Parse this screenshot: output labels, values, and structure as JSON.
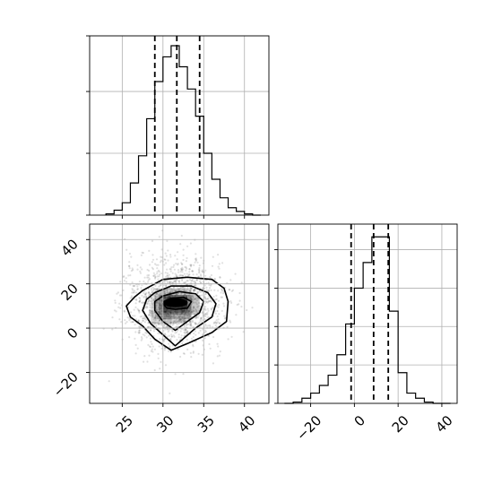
{
  "chart_data": [
    {
      "type": "histogram",
      "panel": "marginal-x",
      "x_range": [
        21,
        43
      ],
      "bin_edges": [
        23,
        24,
        25,
        26,
        27,
        28,
        29,
        30,
        31,
        32,
        33,
        34,
        35,
        36,
        37,
        38,
        39,
        40,
        41,
        42
      ],
      "counts": [
        1,
        4,
        10,
        26,
        48,
        78,
        108,
        128,
        137,
        120,
        102,
        80,
        50,
        29,
        14,
        6,
        3,
        1,
        0
      ],
      "y_max": 145,
      "y_ticks": [
        0,
        50,
        100,
        145
      ],
      "quantile_lines": [
        29.0,
        31.7,
        34.5
      ],
      "x_ticks": [
        25,
        30,
        35,
        40
      ],
      "grid": true
    },
    {
      "type": "histogram",
      "panel": "marginal-y",
      "x_range": [
        -35,
        47
      ],
      "bin_edges": [
        -32,
        -28,
        -24,
        -20,
        -16,
        -12,
        -8,
        -4,
        0,
        4,
        8,
        12,
        16,
        20,
        24,
        28,
        32,
        36,
        40,
        44
      ],
      "counts": [
        0,
        1,
        4,
        8,
        14,
        22,
        38,
        62,
        90,
        110,
        130,
        130,
        72,
        24,
        8,
        4,
        1,
        0,
        0
      ],
      "y_max": 140,
      "y_ticks": [
        0,
        30,
        60,
        90,
        120
      ],
      "quantile_lines": [
        -1.5,
        8.8,
        15.5
      ],
      "x_ticks": [
        -20,
        0,
        20,
        40
      ],
      "x_tick_labels": [
        "−20",
        "0",
        "20",
        "40"
      ],
      "grid": true
    },
    {
      "type": "scatter-density",
      "panel": "joint",
      "x_range": [
        21,
        43
      ],
      "y_range": [
        -34,
        47
      ],
      "center": [
        31.5,
        11
      ],
      "x_ticks": [
        25,
        30,
        35,
        40
      ],
      "y_ticks": [
        -20,
        0,
        20,
        40
      ],
      "y_tick_labels": [
        "−20",
        "0",
        "20",
        "40"
      ],
      "contour_levels": [
        [
          [
            26.5,
            14
          ],
          [
            27.5,
            17
          ],
          [
            30,
            22
          ],
          [
            33,
            23
          ],
          [
            36,
            22
          ],
          [
            37.5,
            18
          ],
          [
            38,
            12
          ],
          [
            37.8,
            3
          ],
          [
            36,
            -2
          ],
          [
            33,
            -7
          ],
          [
            31,
            -10
          ],
          [
            29,
            -5
          ],
          [
            27.5,
            1
          ],
          [
            26,
            5
          ],
          [
            25.5,
            10
          ]
        ],
        [
          [
            28,
            13
          ],
          [
            29,
            16
          ],
          [
            31,
            19
          ],
          [
            33.5,
            19
          ],
          [
            35.5,
            16
          ],
          [
            36.5,
            11
          ],
          [
            36,
            5
          ],
          [
            34,
            0
          ],
          [
            31.5,
            -8
          ],
          [
            30,
            -3
          ],
          [
            28.5,
            2
          ],
          [
            27.5,
            8
          ]
        ],
        [
          [
            29,
            12
          ],
          [
            30,
            14.5
          ],
          [
            32,
            16.5
          ],
          [
            34,
            15.5
          ],
          [
            35,
            12
          ],
          [
            34.5,
            7
          ],
          [
            33,
            3
          ],
          [
            31.5,
            -1
          ],
          [
            30,
            3
          ],
          [
            29,
            8
          ]
        ],
        [
          [
            30,
            11
          ],
          [
            31,
            13.5
          ],
          [
            32.5,
            14
          ],
          [
            33.5,
            12
          ],
          [
            33,
            9
          ],
          [
            31.5,
            8.5
          ],
          [
            30.5,
            9
          ]
        ]
      ],
      "grid": true
    }
  ]
}
